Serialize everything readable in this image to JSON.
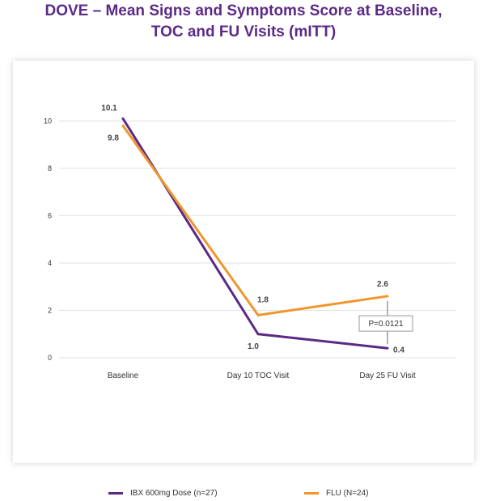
{
  "title": {
    "line1": "DOVE – Mean Signs and Symptoms Score at Baseline,",
    "line2": "TOC and FU Visits (mITT)"
  },
  "colors": {
    "title": "#5b2a86",
    "ibx": "#5b2a86",
    "flu": "#f0962c",
    "grid": "#e3e3e3",
    "annotation_border": "#999999"
  },
  "chart_data": {
    "type": "line",
    "categories": [
      "Baseline",
      "Day 10 TOC Visit",
      "Day 25 FU Visit"
    ],
    "series": [
      {
        "name": "IBX 600mg Dose (n=27)",
        "values": [
          10.1,
          1.0,
          0.4
        ],
        "labels": [
          "10.1",
          "1.0",
          "0.4"
        ],
        "color": "#5b2a86"
      },
      {
        "name": "FLU (N=24)",
        "values": [
          9.8,
          1.8,
          2.6
        ],
        "labels": [
          "9.8",
          "1.8",
          "2.6"
        ],
        "color": "#f0962c"
      }
    ],
    "yticks": [
      "0",
      "2",
      "4",
      "6",
      "8",
      "10"
    ],
    "ylim": [
      0,
      11
    ],
    "grid": true,
    "legend_position": "bottom",
    "annotation": {
      "text": "P=0.0121",
      "category": "Day 25 FU Visit",
      "between": [
        0.4,
        2.6
      ]
    }
  }
}
